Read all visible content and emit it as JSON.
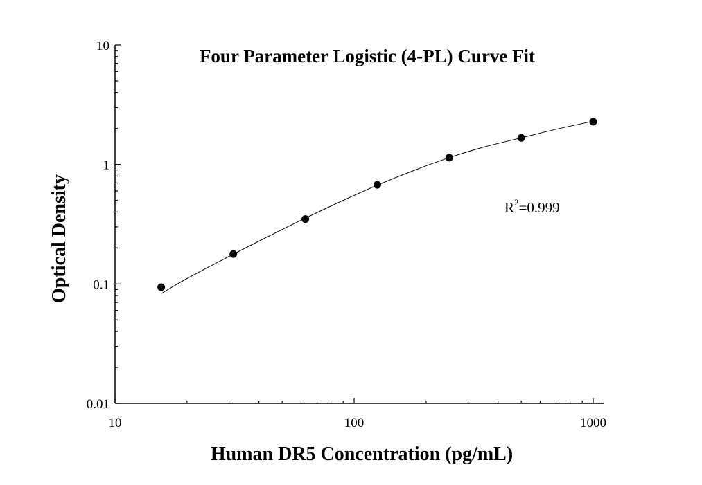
{
  "chart_data": {
    "type": "scatter",
    "title": "Four Parameter Logistic (4-PL) Curve Fit",
    "xlabel": "Human DR5 Concentration (pg/mL)",
    "ylabel": "Optical Density",
    "x_scale": "log",
    "y_scale": "log",
    "xlim": [
      10,
      1000
    ],
    "ylim": [
      0.01,
      10
    ],
    "x_ticks": [
      "10",
      "100",
      "1000"
    ],
    "y_ticks": [
      "0.01",
      "0.1",
      "1",
      "10"
    ],
    "grid": false,
    "annotation": {
      "base": "R",
      "sup": "2",
      "rest": "=0.999"
    },
    "series": [
      {
        "x": [
          15.6,
          31.25,
          62.5,
          125,
          250,
          500,
          1000
        ],
        "y": [
          0.094,
          0.178,
          0.349,
          0.675,
          1.14,
          1.67,
          2.28
        ]
      }
    ],
    "fit": {
      "x": [
        15.6,
        20,
        30,
        45,
        62.5,
        90,
        125,
        180,
        250,
        350,
        500,
        700,
        1000
      ],
      "y": [
        0.083,
        0.111,
        0.17,
        0.257,
        0.355,
        0.5,
        0.67,
        0.9,
        1.14,
        1.4,
        1.67,
        1.97,
        2.3
      ]
    }
  }
}
